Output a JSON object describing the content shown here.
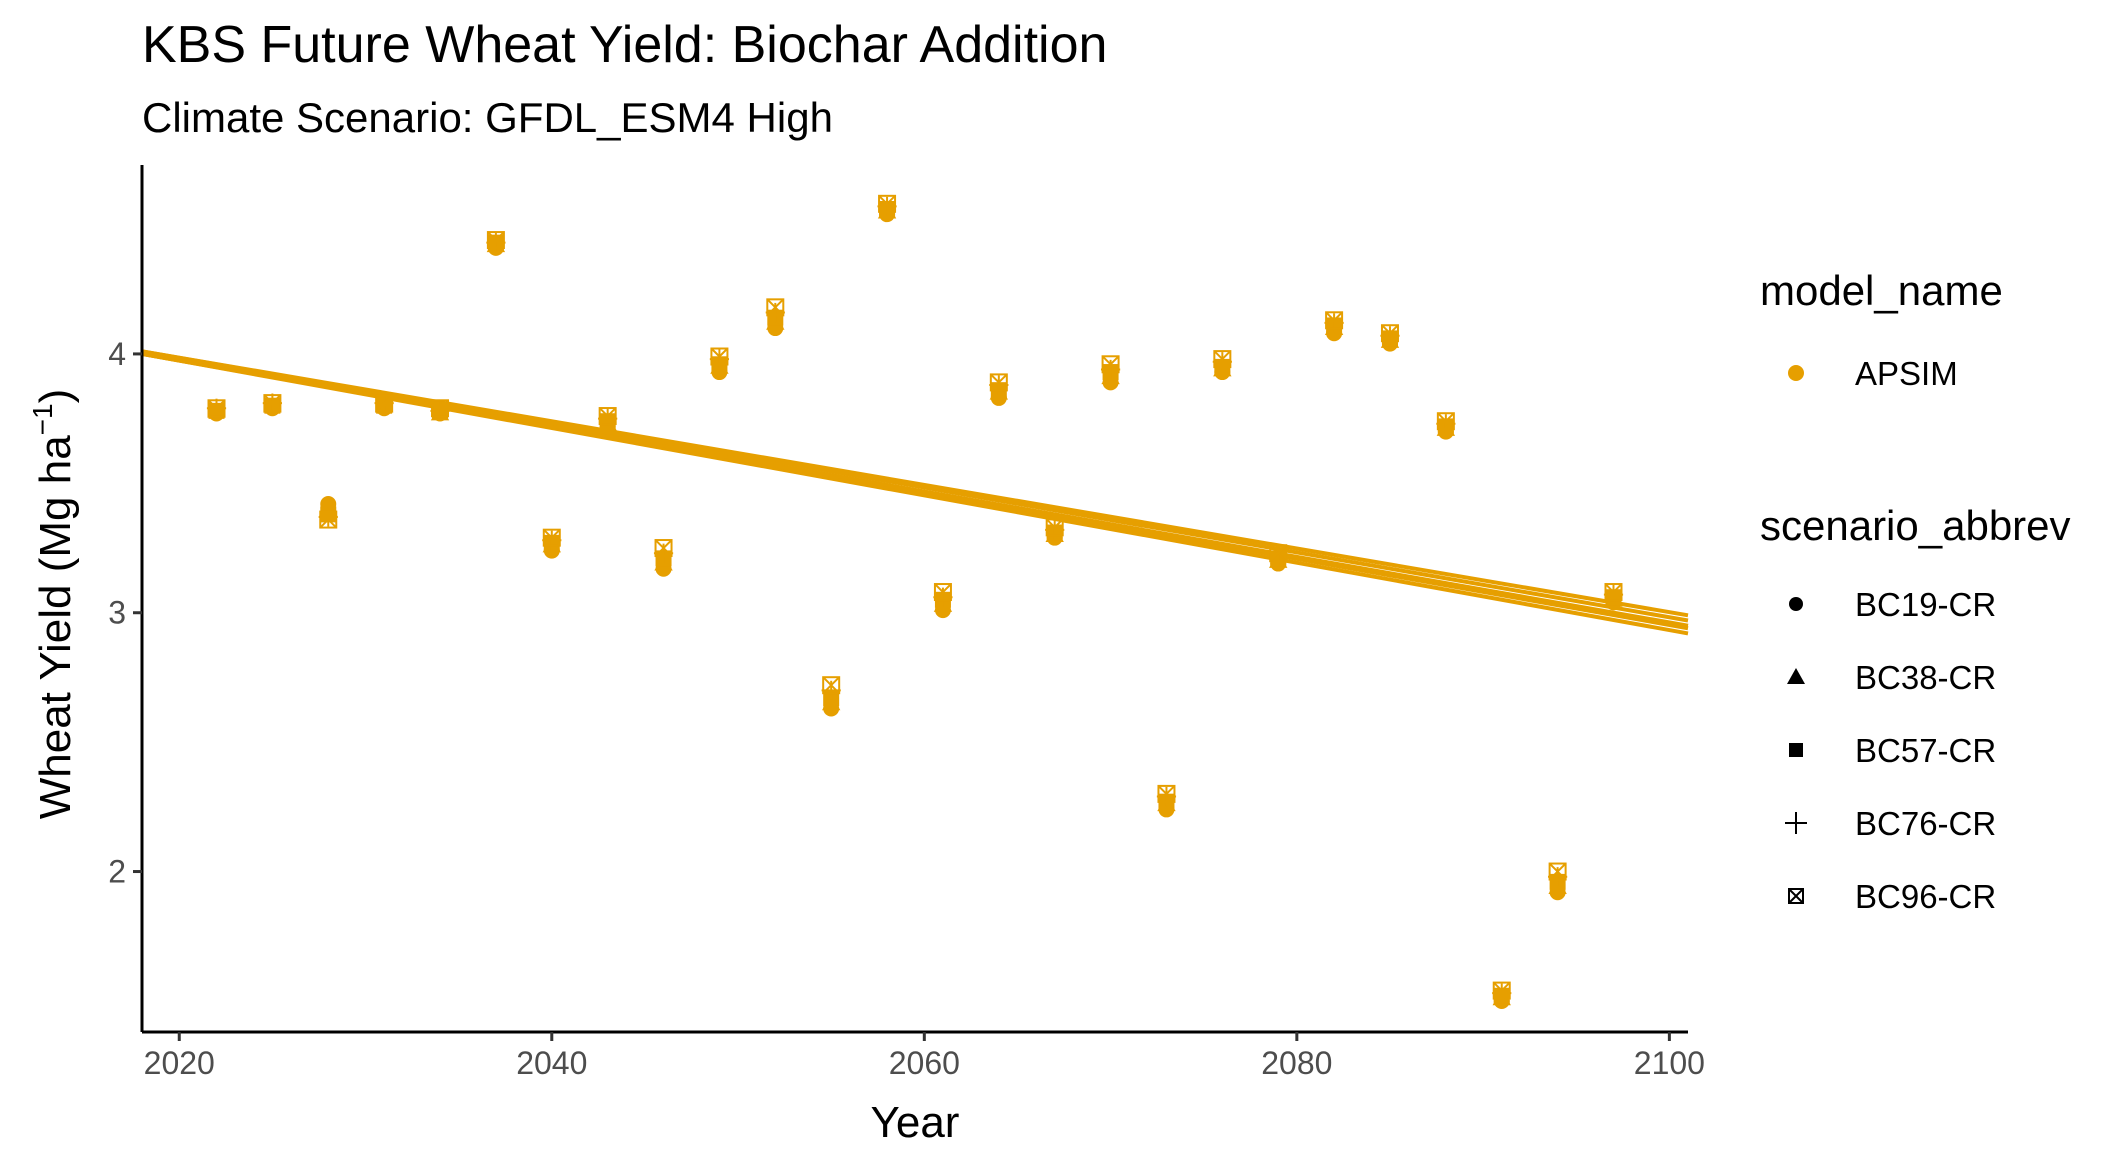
{
  "chart_data": {
    "type": "scatter",
    "title": "KBS Future Wheat Yield: Biochar Addition",
    "subtitle": "Climate Scenario: GFDL_ESM4 High",
    "xlabel": "Year",
    "ylabel": "Wheat Yield (Mg ha",
    "ylabel_superscript": "−1",
    "ylabel_suffix": ")",
    "xlim": [
      2018,
      2101
    ],
    "ylim": [
      1.38,
      4.73
    ],
    "x_ticks": [
      2020,
      2040,
      2060,
      2080,
      2100
    ],
    "y_ticks": [
      2,
      3,
      4
    ],
    "grid": false,
    "color": "#E69F00",
    "legend_position": "right",
    "legend": {
      "model_title": "model_name",
      "model_entries": [
        "APSIM"
      ],
      "scenario_title": "scenario_abbrev",
      "scenario_entries": [
        {
          "name": "BC19-CR",
          "shape": "circle"
        },
        {
          "name": "BC38-CR",
          "shape": "triangle"
        },
        {
          "name": "BC57-CR",
          "shape": "square"
        },
        {
          "name": "BC76-CR",
          "shape": "plus"
        },
        {
          "name": "BC96-CR",
          "shape": "boxed-x"
        }
      ]
    },
    "years": [
      2022,
      2025,
      2028,
      2031,
      2034,
      2037,
      2040,
      2043,
      2046,
      2049,
      2052,
      2055,
      2058,
      2061,
      2064,
      2067,
      2070,
      2073,
      2076,
      2079,
      2082,
      2085,
      2088,
      2091,
      2094,
      2097
    ],
    "series": [
      {
        "name": "BC19-CR",
        "shape": "circle",
        "values": [
          3.77,
          3.79,
          3.42,
          3.79,
          3.77,
          4.41,
          3.24,
          3.72,
          3.17,
          3.93,
          4.1,
          2.63,
          4.54,
          3.01,
          3.83,
          3.29,
          3.89,
          2.24,
          3.93,
          3.19,
          4.08,
          4.04,
          3.7,
          1.5,
          1.92,
          3.04
        ]
      },
      {
        "name": "BC38-CR",
        "shape": "triangle",
        "values": [
          3.78,
          3.8,
          3.4,
          3.8,
          3.77,
          4.42,
          3.26,
          3.73,
          3.19,
          3.95,
          4.12,
          2.65,
          4.55,
          3.03,
          3.85,
          3.3,
          3.91,
          2.26,
          3.94,
          3.2,
          4.1,
          4.05,
          3.71,
          1.51,
          1.94,
          3.05
        ]
      },
      {
        "name": "BC57-CR",
        "shape": "square",
        "values": [
          3.78,
          3.8,
          3.38,
          3.8,
          3.78,
          4.43,
          3.27,
          3.74,
          3.21,
          3.96,
          4.14,
          2.67,
          4.56,
          3.05,
          3.86,
          3.31,
          3.93,
          2.27,
          3.95,
          3.21,
          4.11,
          4.06,
          3.72,
          1.52,
          1.96,
          3.06
        ]
      },
      {
        "name": "BC76-CR",
        "shape": "plus",
        "values": [
          3.79,
          3.81,
          3.37,
          3.81,
          3.78,
          4.43,
          3.28,
          3.75,
          3.23,
          3.98,
          4.16,
          2.7,
          4.57,
          3.06,
          3.88,
          3.32,
          3.94,
          2.29,
          3.97,
          3.22,
          4.12,
          4.07,
          3.73,
          1.53,
          1.98,
          3.07
        ]
      },
      {
        "name": "BC96-CR",
        "shape": "boxed-x",
        "values": [
          3.79,
          3.81,
          3.36,
          3.81,
          3.79,
          4.44,
          3.29,
          3.76,
          3.25,
          3.99,
          4.18,
          2.72,
          4.58,
          3.08,
          3.89,
          3.33,
          3.96,
          2.3,
          3.98,
          3.23,
          4.13,
          4.08,
          3.74,
          1.54,
          2.0,
          3.08
        ]
      }
    ],
    "trend_lines": [
      {
        "name": "BC19-CR",
        "start": [
          2018,
          4.0
        ],
        "end": [
          2101,
          2.92
        ]
      },
      {
        "name": "BC38-CR",
        "start": [
          2018,
          4.0
        ],
        "end": [
          2101,
          2.94
        ]
      },
      {
        "name": "BC57-CR",
        "start": [
          2018,
          4.0
        ],
        "end": [
          2101,
          2.95
        ]
      },
      {
        "name": "BC76-CR",
        "start": [
          2018,
          4.01
        ],
        "end": [
          2101,
          2.97
        ]
      },
      {
        "name": "BC96-CR",
        "start": [
          2018,
          4.01
        ],
        "end": [
          2101,
          2.99
        ]
      }
    ]
  }
}
